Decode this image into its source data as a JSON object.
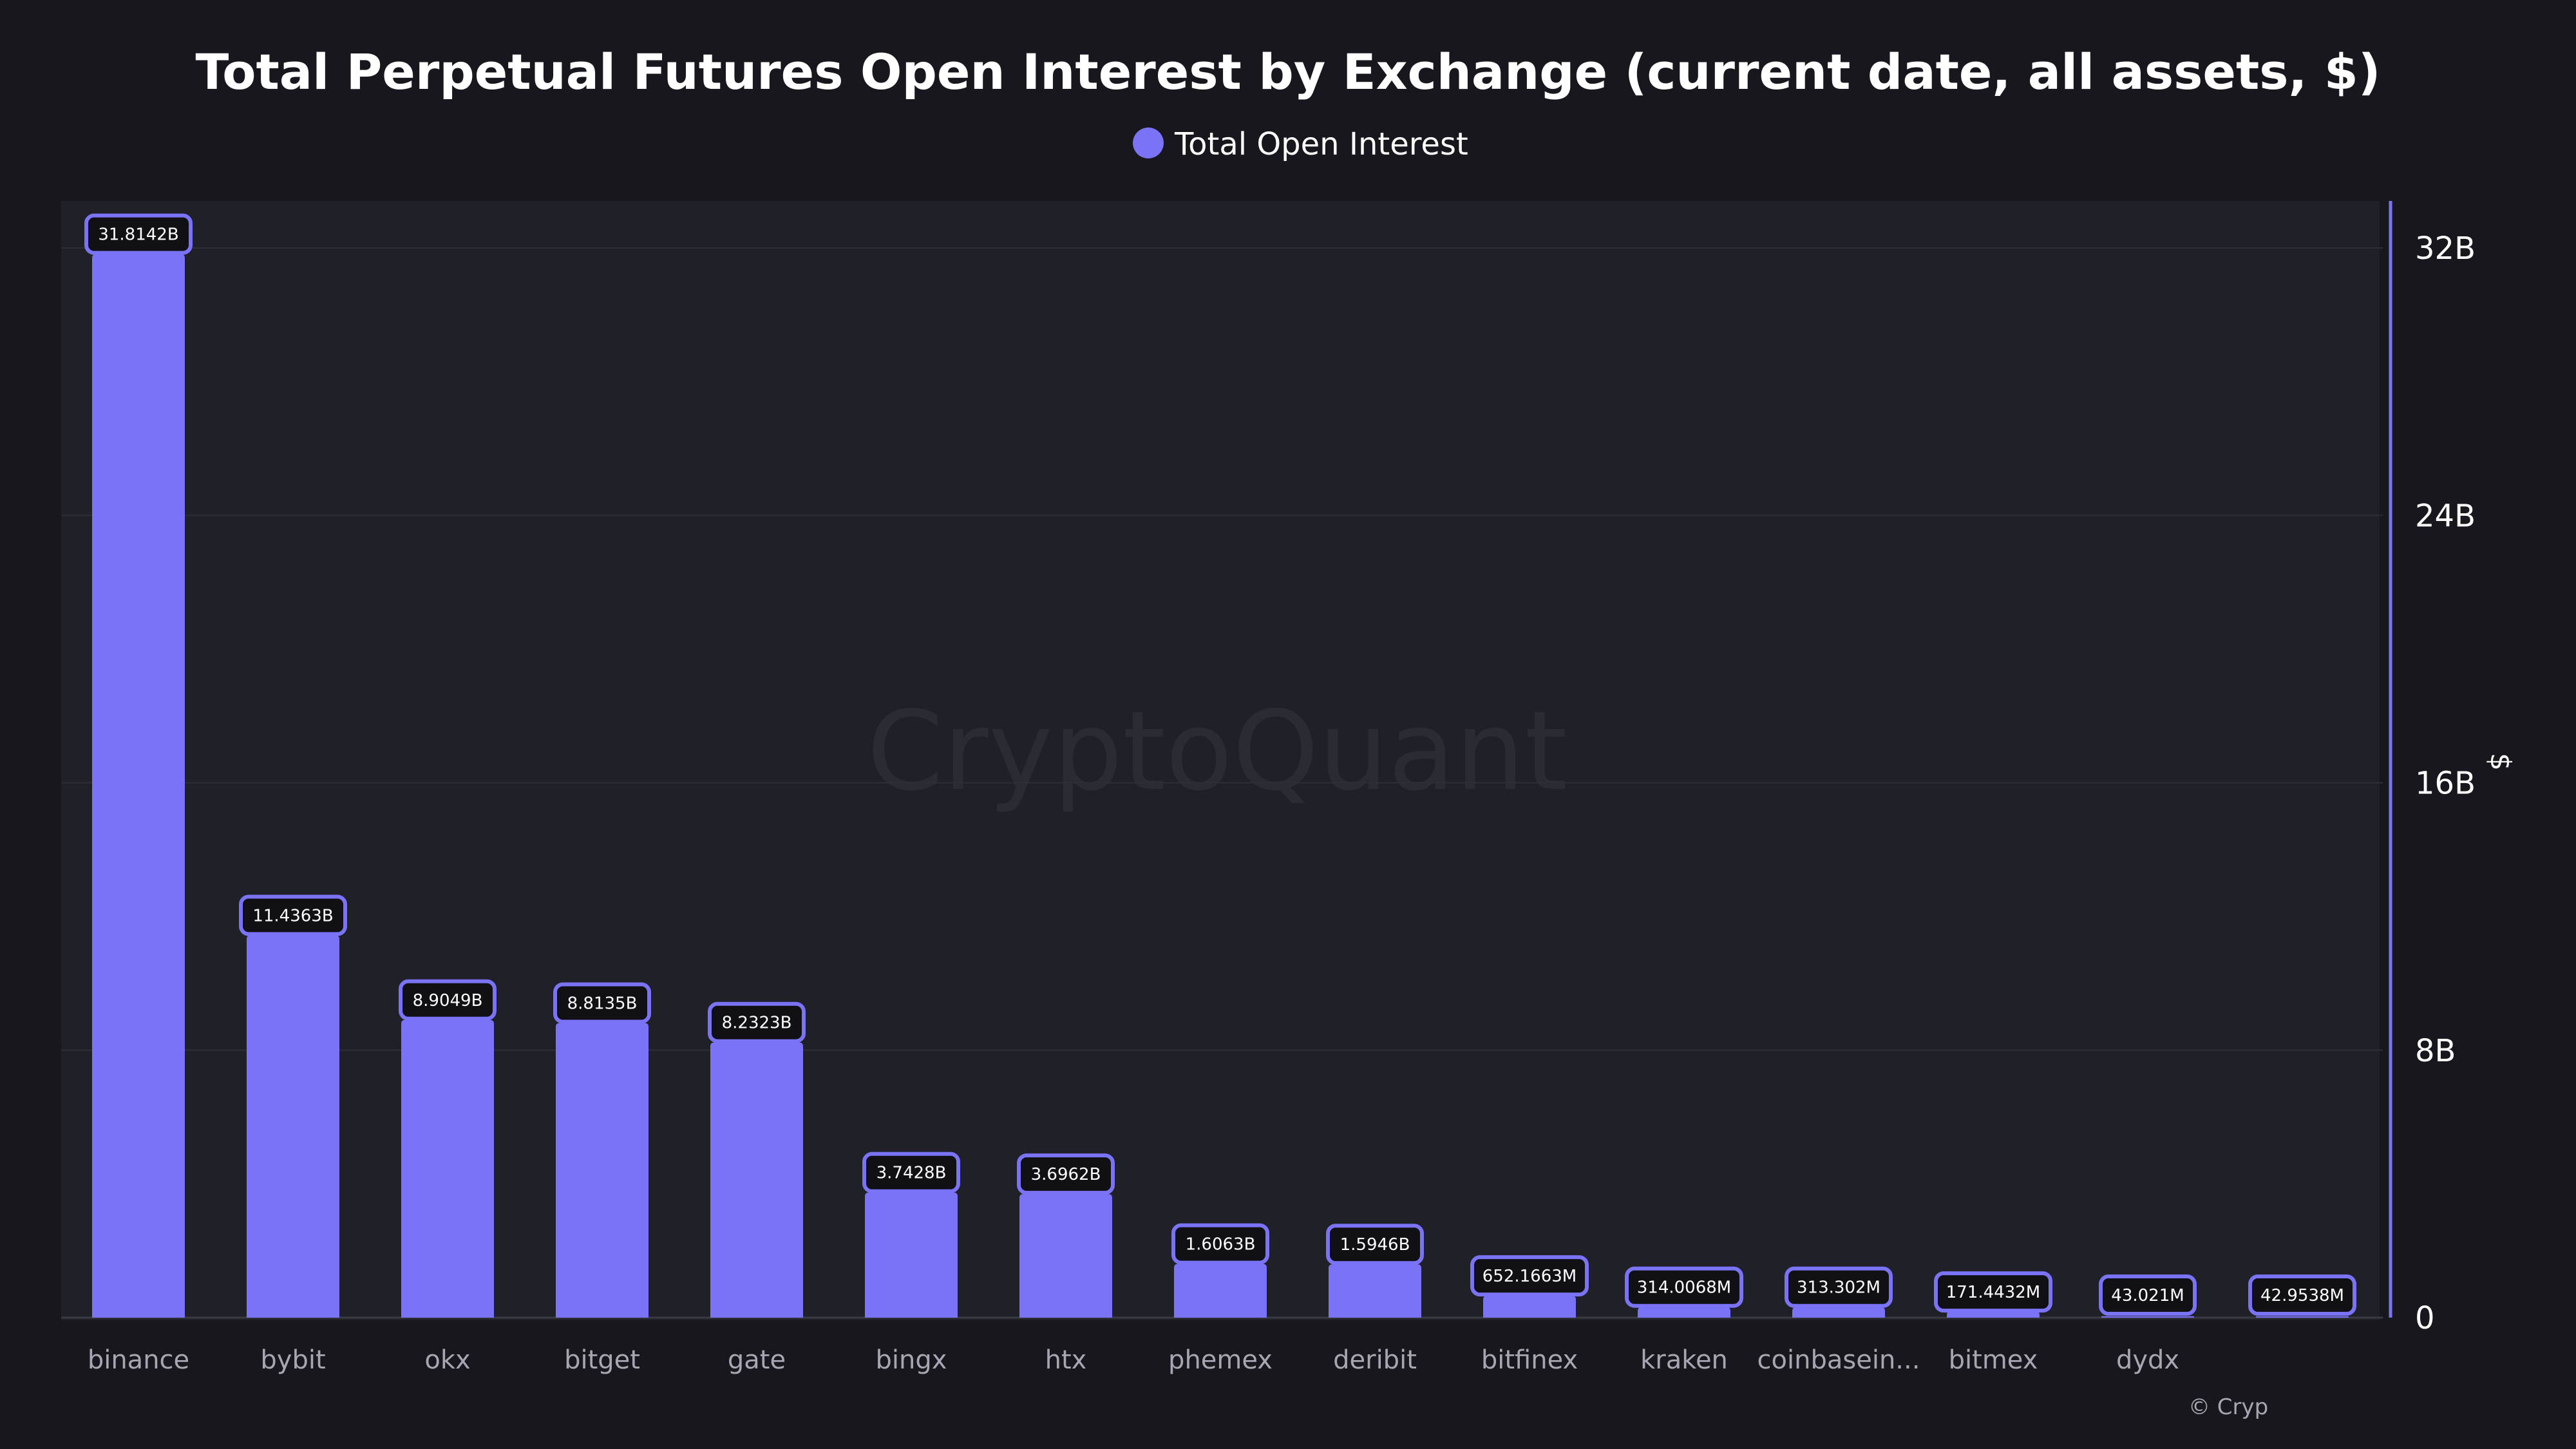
{
  "chart_data": {
    "type": "bar",
    "title": "Total Perpetual Futures Open Interest by Exchange (current date, all assets, $)",
    "legend": {
      "position": "top-center",
      "entries": [
        "Total Open Interest"
      ]
    },
    "ylabel": "$",
    "xlabel": "",
    "y_axis_side": "right",
    "ylim": [
      0,
      33.4
    ],
    "yticks": [
      0,
      8,
      16,
      24,
      32
    ],
    "ytick_labels": [
      "0",
      "8B",
      "16B",
      "24B",
      "32B"
    ],
    "grid": true,
    "categories": [
      "binance",
      "bybit",
      "okx",
      "bitget",
      "gate",
      "bingx",
      "htx",
      "phemex",
      "deribit",
      "bitfinex",
      "kraken",
      "coinbasein...",
      "bitmex",
      "dydx",
      ""
    ],
    "series": [
      {
        "name": "Total Open Interest",
        "color": "#7b73f5",
        "values": [
          31.8142,
          11.4363,
          8.9049,
          8.8135,
          8.2323,
          3.7428,
          3.6962,
          1.6063,
          1.5946,
          0.6521663,
          0.3140068,
          0.313302,
          0.1714432,
          0.043021,
          0.0429538
        ],
        "data_labels": [
          "31.8142B",
          "11.4363B",
          "8.9049B",
          "8.8135B",
          "8.2323B",
          "3.7428B",
          "3.6962B",
          "1.6063B",
          "1.5946B",
          "652.1663M",
          "314.0068M",
          "313.302M",
          "171.4432M",
          "43.021M",
          "42.9538M"
        ]
      }
    ],
    "watermark": "CryptoQuant",
    "copyright": "© Cryp"
  },
  "colors": {
    "background": "#17171d",
    "plot_background": "#202028",
    "bar": "#7b73f5",
    "label_border": "#7b73f5",
    "label_fill": "#101015",
    "grid": "#2e2e38",
    "axis_line": "#7b73f5"
  }
}
